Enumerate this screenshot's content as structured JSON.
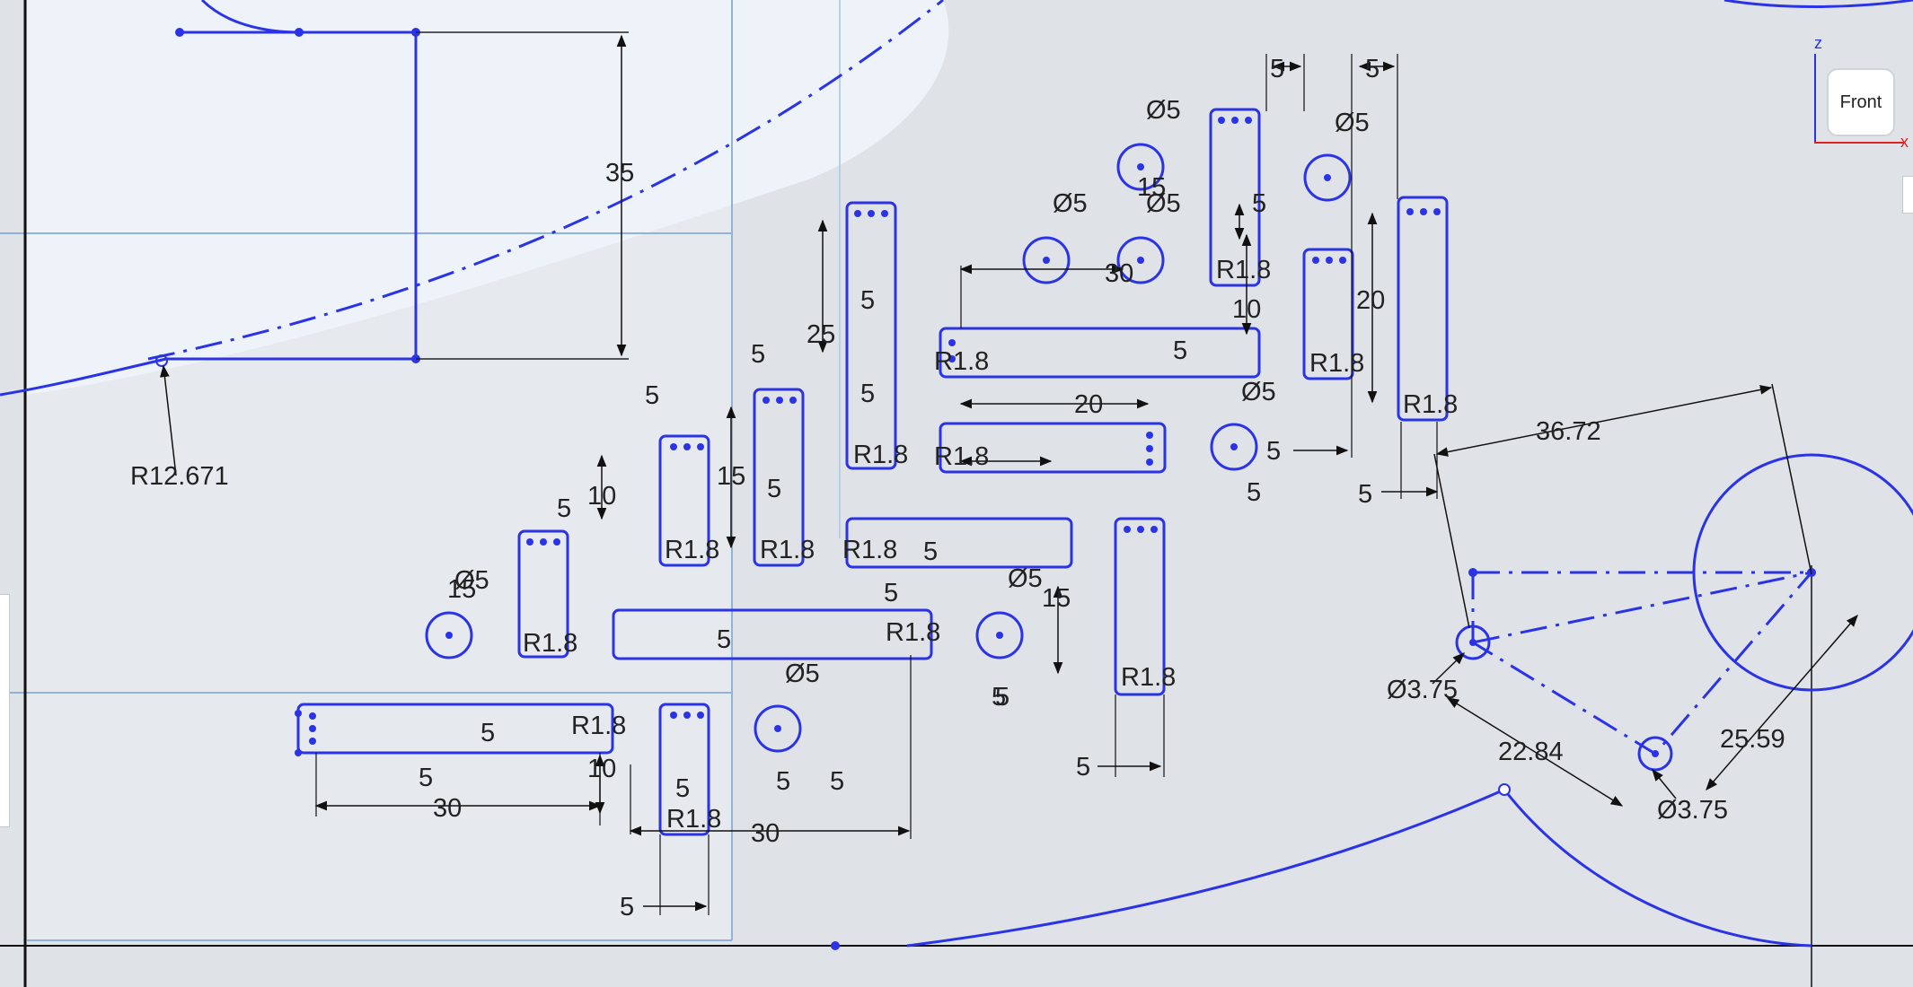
{
  "view_cube": {
    "face_label": "Front",
    "axis_z": "z",
    "axis_x": "x"
  },
  "colors": {
    "sketch": "#2b33e6",
    "dimension": "#222222",
    "background": "#dfe2e6",
    "region": "#eef3fa",
    "frame": "#5a8ec9"
  },
  "dimensions": {
    "d35": "35",
    "r12": "R12.671",
    "d25": "25",
    "d30a": "30",
    "d30b": "30",
    "d30c": "30",
    "d20a": "20",
    "d20b": "20",
    "d10a": "10",
    "d10b": "10",
    "d10c": "10",
    "d15a": "15",
    "d15b": "15",
    "d15c": "15",
    "d15d": "15",
    "d5": "5",
    "dia5": "Ø5",
    "r18": "R1.8",
    "d3672": "36.72",
    "d2284": "22.84",
    "d2559": "25.59",
    "dia375": "Ø3.75"
  }
}
